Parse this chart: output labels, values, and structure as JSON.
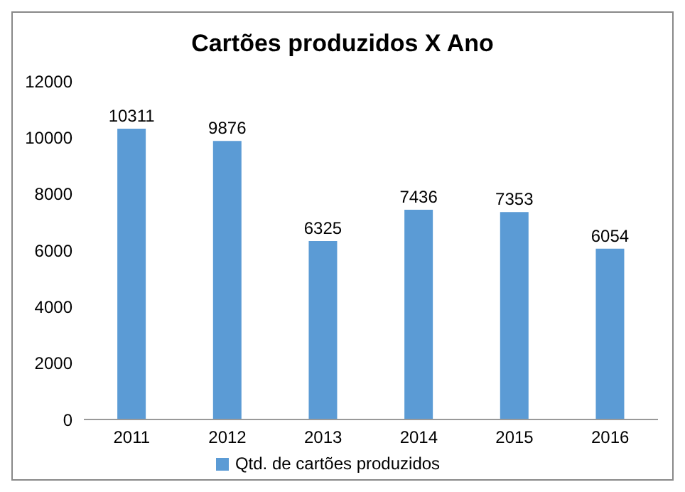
{
  "chart_data": {
    "type": "bar",
    "title": "Cartões produzidos X Ano",
    "categories": [
      "2011",
      "2012",
      "2013",
      "2014",
      "2015",
      "2016"
    ],
    "series": [
      {
        "name": "Qtd. de cartões produzidos",
        "color": "#5b9bd5",
        "values": [
          10311,
          9876,
          6325,
          7436,
          7353,
          6054
        ]
      }
    ],
    "ylim": [
      0,
      12000
    ],
    "yticks": [
      0,
      2000,
      4000,
      6000,
      8000,
      10000,
      12000
    ],
    "data_labels": true,
    "grid": false,
    "legend": "bottom"
  }
}
